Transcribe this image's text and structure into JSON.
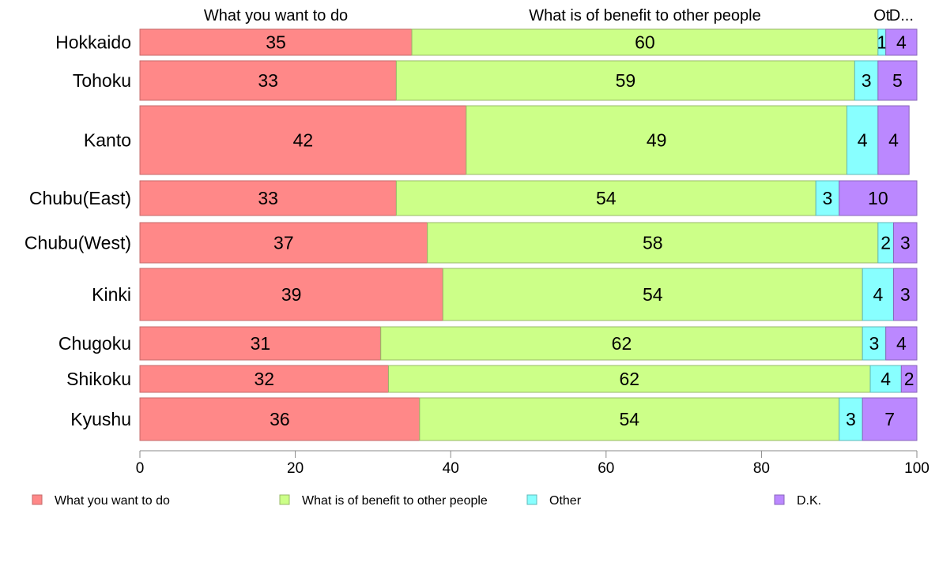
{
  "chart_data": {
    "type": "bar",
    "orientation": "horizontal",
    "stacked": true,
    "title": "",
    "xlabel": "",
    "ylabel": "",
    "xlim": [
      0,
      100
    ],
    "x_ticks": [
      0,
      20,
      40,
      60,
      80,
      100
    ],
    "grid": false,
    "legend_position": "bottom",
    "column_headers": [
      "What you want to do",
      "What is of benefit to other people",
      "Ot",
      "D..."
    ],
    "categories": [
      "Hokkaido",
      "Tohoku",
      "Kanto",
      "Chubu(East)",
      "Chubu(West)",
      "Kinki",
      "Chugoku",
      "Shikoku",
      "Kyushu"
    ],
    "series": [
      {
        "name": "What you want to do",
        "color": "#ff8888",
        "values": [
          35,
          33,
          42,
          33,
          37,
          39,
          31,
          32,
          36
        ]
      },
      {
        "name": "What is of benefit to other people",
        "color": "#ccff88",
        "values": [
          60,
          59,
          49,
          54,
          58,
          54,
          62,
          62,
          54
        ]
      },
      {
        "name": "Other",
        "color": "#88ffff",
        "values": [
          1,
          3,
          4,
          3,
          2,
          4,
          3,
          4,
          3
        ]
      },
      {
        "name": "D.K.",
        "color": "#bb88ff",
        "values": [
          4,
          5,
          4,
          10,
          3,
          3,
          4,
          2,
          7
        ]
      }
    ]
  }
}
